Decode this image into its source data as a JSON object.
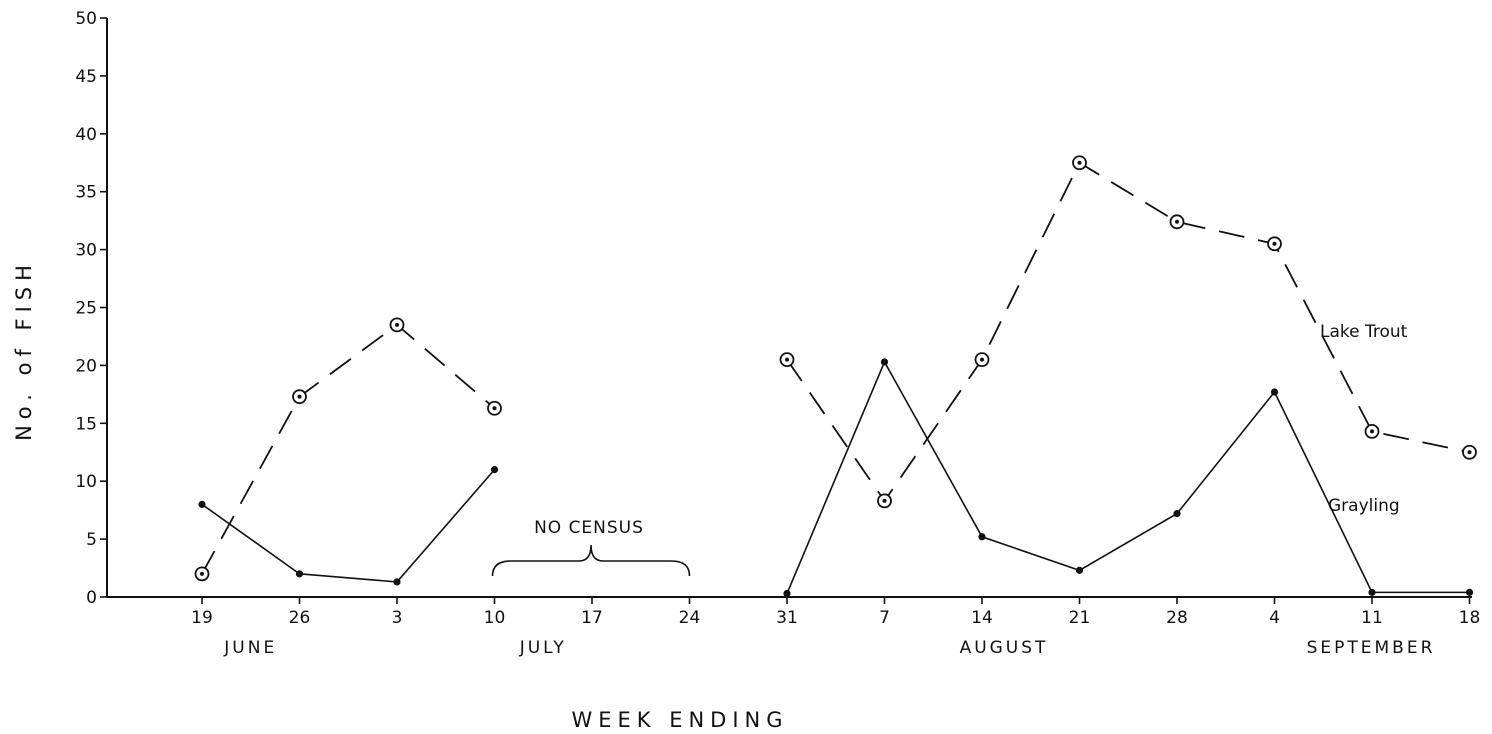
{
  "chart_data": {
    "type": "line",
    "categories": [
      "19",
      "26",
      "3",
      "10",
      "17",
      "24",
      "31",
      "7",
      "14",
      "21",
      "28",
      "4",
      "11",
      "18"
    ],
    "months": [
      {
        "label": "JUNE",
        "from": 0,
        "to": 1
      },
      {
        "label": "JULY",
        "from": 2,
        "to": 5
      },
      {
        "label": "AUGUST",
        "from": 6,
        "to": 10
      },
      {
        "label": "SEPTEMBER",
        "from": 11,
        "to": 13
      }
    ],
    "xlabel": "WEEK ENDING",
    "ylabel": "No. of FISH",
    "ylim": [
      0,
      50
    ],
    "yticks": [
      "0",
      "5",
      "10",
      "15",
      "20",
      "25",
      "30",
      "35",
      "40",
      "45",
      "50"
    ],
    "grid": false,
    "series": [
      {
        "name": "Lake Trout",
        "style": "dashed-open-circle",
        "segments": [
          [
            [
              0,
              2
            ],
            [
              1,
              17.3
            ],
            [
              2,
              23.5
            ],
            [
              3,
              16.3
            ]
          ],
          [
            [
              6,
              20.5
            ],
            [
              7,
              8.3
            ],
            [
              8,
              20.5
            ],
            [
              9,
              37.5
            ],
            [
              10,
              32.4
            ],
            [
              11,
              30.5
            ],
            [
              12,
              14.3
            ],
            [
              13,
              12.5
            ]
          ]
        ]
      },
      {
        "name": "Grayling",
        "style": "solid-dot",
        "segments": [
          [
            [
              0,
              8
            ],
            [
              1,
              2
            ],
            [
              2,
              1.3
            ],
            [
              3,
              11
            ]
          ],
          [
            [
              6,
              0.3
            ],
            [
              7,
              20.3
            ],
            [
              8,
              5.2
            ],
            [
              9,
              2.3
            ],
            [
              10,
              7.2
            ],
            [
              11,
              17.7
            ],
            [
              12,
              0.4
            ],
            [
              13,
              0.4
            ]
          ]
        ]
      }
    ],
    "annotations": [
      {
        "text": "NO CENSUS",
        "from": 3,
        "to": 5
      }
    ]
  }
}
